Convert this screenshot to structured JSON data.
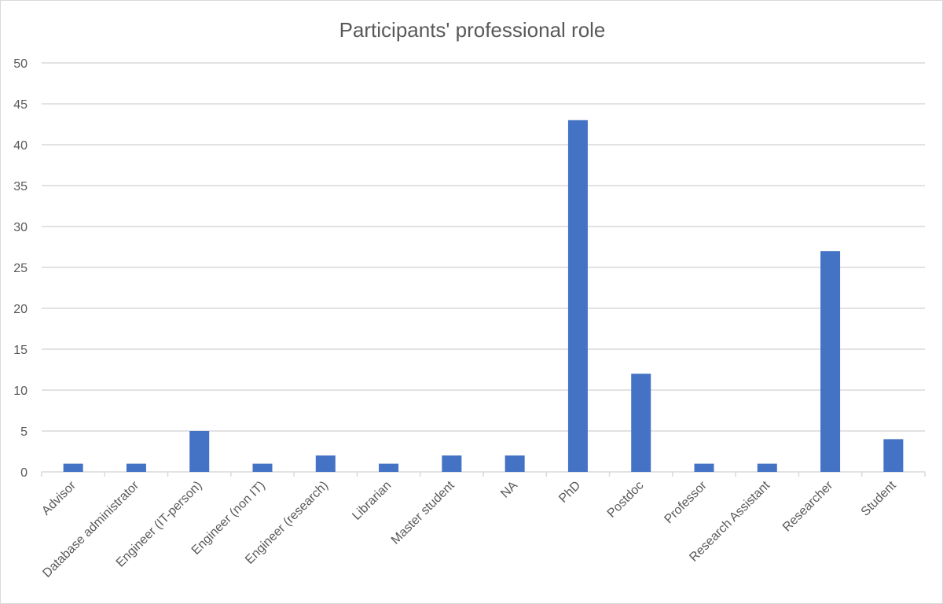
{
  "chart_data": {
    "type": "bar",
    "title": "Participants' professional role",
    "xlabel": "",
    "ylabel": "",
    "ylim": [
      0,
      50
    ],
    "y_ticks": [
      "0",
      "5",
      "10",
      "15",
      "20",
      "25",
      "30",
      "35",
      "40",
      "45",
      "50"
    ],
    "grid": true,
    "legend": "none",
    "bar_color": "#4472C4",
    "categories": [
      "Advisor",
      "Database administrator",
      "Engineer (IT-person)",
      "Engineer (non IT)",
      "Engineer (research)",
      "Librarian",
      "Master student",
      "NA",
      "PhD",
      "Postdoc",
      "Professor",
      "Research Assistant",
      "Researcher",
      "Student"
    ],
    "values": [
      1,
      1,
      5,
      1,
      2,
      1,
      2,
      2,
      43,
      12,
      1,
      1,
      27,
      4
    ]
  }
}
